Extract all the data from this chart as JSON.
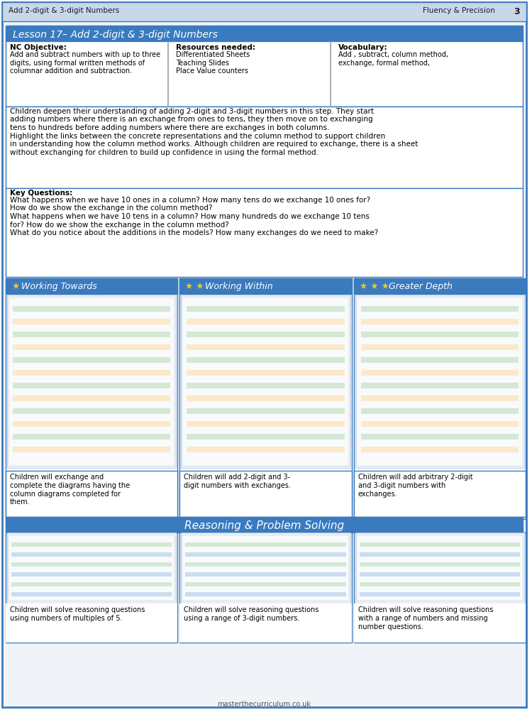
{
  "page_header_left": "Add 2-digit & 3-digit Numbers",
  "page_header_right": "Fluency & Precision",
  "page_number": "3",
  "lesson_title": "Lesson 17– Add 2-digit & 3-digit Numbers",
  "nc_objective_label": "NC Objective:",
  "nc_objective_text": "Add and subtract numbers with up to three\ndigits, using formal written methods of\ncolumnar addition and subtraction.",
  "resources_label": "Resources needed:",
  "resources_text": "Differentiated Sheets\nTeaching Slides\nPlace Value counters",
  "vocab_label": "Vocabulary:",
  "vocab_text": "Add , subtract, column method,\nexchange, formal method,",
  "main_description": "Children deepen their understanding of adding 2-digit and 3-digit numbers in this step. They start\nadding numbers where there is an exchange from ones to tens, they then move on to exchanging\ntens to hundreds before adding numbers where there are exchanges in both columns.\nHighlight the links between the concrete representations and the column method to support children\nin understanding how the column method works. Although children are required to exchange, there is a sheet\nwithout exchanging for children to build up confidence in using the formal method.",
  "key_questions_label": "Key Questions:",
  "key_questions_text": "What happens when we have 10 ones in a column? How many tens do we exchange 10 ones for?\nHow do we show the exchange in the column method?\nWhat happens when we have 10 tens in a column? How many hundreds do we exchange 10 tens\nfor? How do we show the exchange in the column method?\nWhat do you notice about the additions in the models? How many exchanges do we need to make?",
  "col1_title": "Working Towards",
  "col2_title": "Working Within",
  "col3_title": "Greater Depth",
  "col1_desc": "Children will exchange and\ncomplete the diagrams having the\ncolumn diagrams completed for\nthem.",
  "col2_desc": "Children will add 2-digit and 3-\ndigit numbers with exchanges.",
  "col3_desc": "Children will add arbitrary 2-digit\nand 3-digit numbers with\nexchanges.",
  "rps_title": "Reasoning & Problem Solving",
  "rps_col1_desc": "Children will solve reasoning questions\nusing numbers of multiples of 5.",
  "rps_col2_desc": "Children will solve reasoning questions\nusing a range of 3-digit numbers.",
  "rps_col3_desc": "Children will solve reasoning questions\nwith a range of numbers and missing\nnumber questions.",
  "footer": "masterthecurriculum.co.uk",
  "bg_color": "#ffffff",
  "header_bg": "#c8d8e8",
  "border_color": "#3a7abf",
  "lesson_header_bg": "#3a7abf",
  "lesson_header_text": "#ffffff",
  "col_header_bg": "#3a7abf",
  "col_header_text": "#ffffff",
  "rps_header_bg": "#3a7abf",
  "rps_header_text": "#ffffff",
  "star_color": "#f5c518",
  "thumbnail_bg": "#e8f0f8",
  "thumbnail_border": "#aac0d8"
}
